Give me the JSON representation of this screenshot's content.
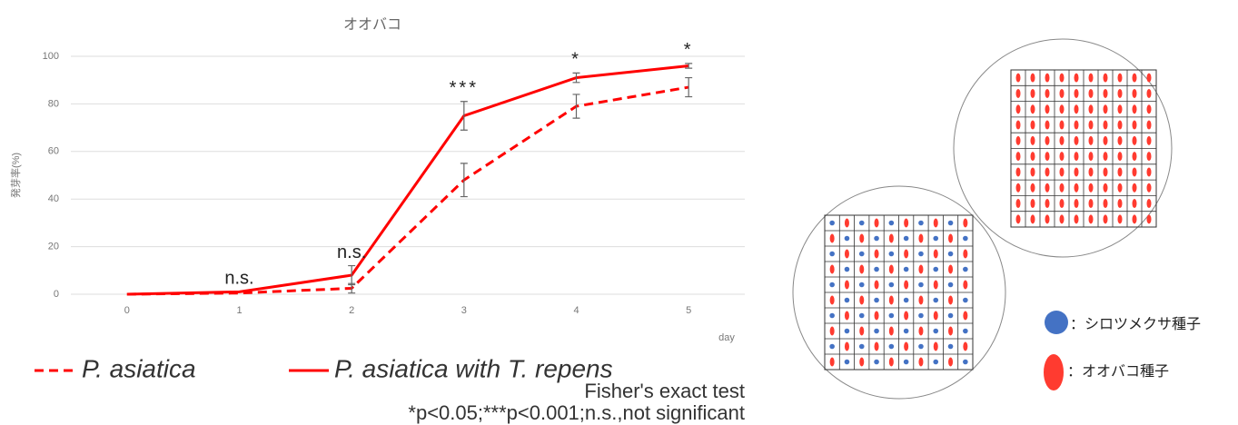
{
  "chart_data": {
    "type": "line",
    "title": "オオバコ",
    "y_label": "発芽率(%)",
    "x_label": "day",
    "x": [
      0,
      1,
      2,
      3,
      4,
      5
    ],
    "xlim": [
      -0.5,
      5.5
    ],
    "xticks": [
      0,
      1,
      2,
      3,
      4,
      5
    ],
    "ylim": [
      0,
      100
    ],
    "yticks": [
      0,
      20,
      40,
      60,
      80,
      100
    ],
    "grid": true,
    "series": [
      {
        "name": "P. asiatica",
        "color": "#ff0000",
        "dashed": true,
        "values": [
          0,
          0.5,
          2.5,
          48,
          79,
          87
        ],
        "errors": [
          0,
          0,
          2,
          7,
          5,
          4
        ]
      },
      {
        "name": "P. asiatica with T. repens",
        "color": "#ff0000",
        "dashed": false,
        "values": [
          0,
          1,
          8,
          75,
          91,
          96
        ],
        "errors": [
          0,
          0,
          4,
          6,
          2,
          1
        ]
      }
    ],
    "annotations": [
      {
        "x": 1,
        "text": "n.s."
      },
      {
        "x": 2,
        "text": "n.s."
      },
      {
        "x": 3,
        "text": "***"
      },
      {
        "x": 4,
        "text": "*"
      },
      {
        "x": 5,
        "text": "*"
      }
    ],
    "footnotes": [
      "Fisher's exact test",
      "*p<0.05;***p<0.001;n.s.,not significant"
    ]
  },
  "diagram": {
    "legend": [
      {
        "label": "：シロツメクサ種子",
        "color": "#4472c4"
      },
      {
        "label": "：オオバコ種子",
        "color": "#ff3b30"
      }
    ]
  }
}
